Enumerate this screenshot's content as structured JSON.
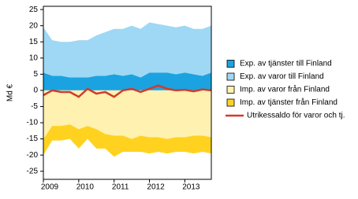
{
  "chart_data": {
    "type": "area",
    "y_label": "Md €",
    "categories": [
      "2009",
      null,
      null,
      null,
      "2010",
      null,
      null,
      null,
      "2011",
      null,
      null,
      null,
      "2012",
      null,
      null,
      null,
      "2013",
      null,
      null,
      null
    ],
    "ylim": [
      -27.5,
      26
    ],
    "yticks": [
      -25,
      -20,
      -15,
      -10,
      -5,
      0,
      5,
      10,
      15,
      20,
      25
    ],
    "series": [
      {
        "name": "Exp. av tjänster till Finland",
        "color": "#1aa3e0",
        "stack": "pos",
        "values": [
          5.5,
          4.5,
          4.5,
          4,
          4,
          4,
          4.5,
          4.5,
          5,
          4.5,
          5,
          4,
          5.5,
          5.5,
          5.5,
          5,
          5.5,
          5,
          4.5,
          5.5
        ]
      },
      {
        "name": "Exp. av varor till Finland",
        "color": "#9ed8f5",
        "stack": "pos",
        "values": [
          14,
          11,
          10.5,
          11,
          11.5,
          11.5,
          12.5,
          13.5,
          14,
          14.5,
          15,
          15,
          15.5,
          15,
          14.5,
          14.5,
          14.5,
          14,
          14.5,
          14.5
        ]
      },
      {
        "name": "Imp. av varor från Finland",
        "color": "#fff1b0",
        "stack": "neg",
        "values": [
          -15,
          -11,
          -11,
          -10.5,
          -12,
          -11,
          -12,
          -13.5,
          -14,
          -14,
          -15,
          -14,
          -14.5,
          -14.5,
          -15,
          -14.5,
          -14.5,
          -14,
          -14,
          -14.5
        ]
      },
      {
        "name": "Imp. av tjänster från Finland",
        "color": "#ffd21f",
        "stack": "neg",
        "values": [
          -5,
          -4.5,
          -4.5,
          -4.5,
          -6,
          -4,
          -6,
          -4.5,
          -6.5,
          -5,
          -4,
          -5,
          -5,
          -4.5,
          -4.5,
          -4.5,
          -4.5,
          -5.5,
          -5,
          -5
        ]
      },
      {
        "name": "Utrikessaldo för varor och tj.",
        "color": "#d43a2a",
        "kind": "line",
        "values": [
          -1.5,
          0,
          -0.5,
          -0.5,
          -2,
          0.5,
          -1,
          -0.5,
          -2,
          0,
          0.5,
          -0.5,
          0.5,
          1.5,
          0.5,
          0,
          0.2,
          -0.3,
          0.3,
          0
        ]
      }
    ]
  }
}
